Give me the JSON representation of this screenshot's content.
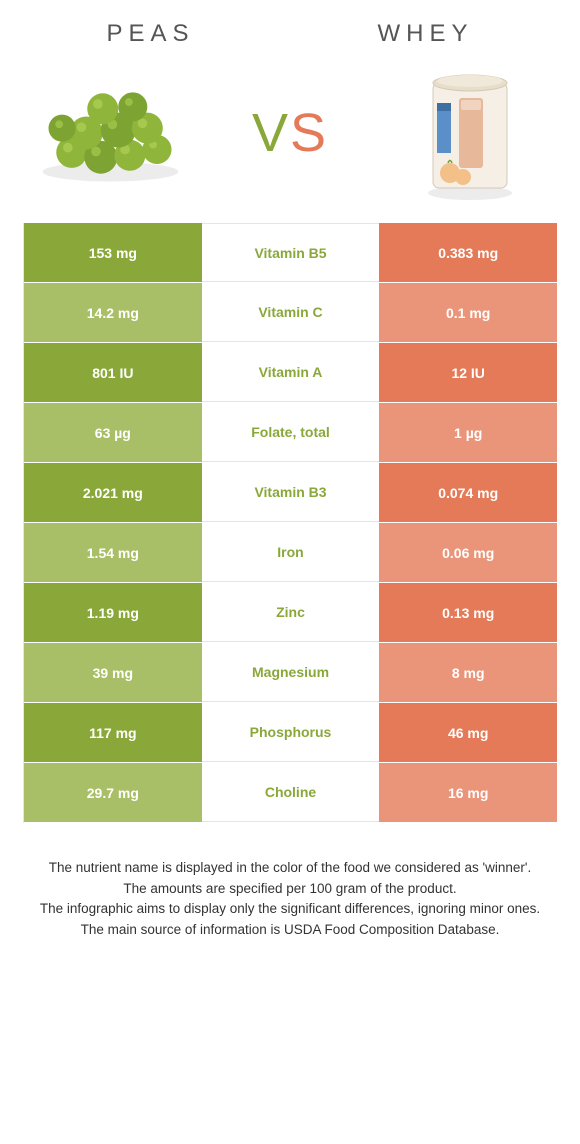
{
  "header": {
    "left": "PEAS",
    "right": "WHEY"
  },
  "vs": {
    "v": "V",
    "s": "S"
  },
  "colors": {
    "green_strong": "#8aa83a",
    "green_light": "#a9bf67",
    "orange_strong": "#e47a57",
    "orange_light": "#ea9579"
  },
  "rows": [
    {
      "left": "153 mg",
      "mid": "Vitamin B5",
      "right": "0.383 mg",
      "winner": "left"
    },
    {
      "left": "14.2 mg",
      "mid": "Vitamin C",
      "right": "0.1 mg",
      "winner": "left"
    },
    {
      "left": "801 IU",
      "mid": "Vitamin A",
      "right": "12 IU",
      "winner": "left"
    },
    {
      "left": "63 µg",
      "mid": "Folate, total",
      "right": "1 µg",
      "winner": "left"
    },
    {
      "left": "2.021 mg",
      "mid": "Vitamin B3",
      "right": "0.074 mg",
      "winner": "left"
    },
    {
      "left": "1.54 mg",
      "mid": "Iron",
      "right": "0.06 mg",
      "winner": "left"
    },
    {
      "left": "1.19 mg",
      "mid": "Zinc",
      "right": "0.13 mg",
      "winner": "left"
    },
    {
      "left": "39 mg",
      "mid": "Magnesium",
      "right": "8 mg",
      "winner": "left"
    },
    {
      "left": "117 mg",
      "mid": "Phosphorus",
      "right": "46 mg",
      "winner": "left"
    },
    {
      "left": "29.7 mg",
      "mid": "Choline",
      "right": "16 mg",
      "winner": "left"
    }
  ],
  "footer": [
    "The nutrient name is displayed in the color of the food we considered as 'winner'.",
    "The amounts are specified per 100 gram of the product.",
    "The infographic aims to display only the significant differences, ignoring minor ones.",
    "The main source of information is USDA Food Composition Database."
  ]
}
